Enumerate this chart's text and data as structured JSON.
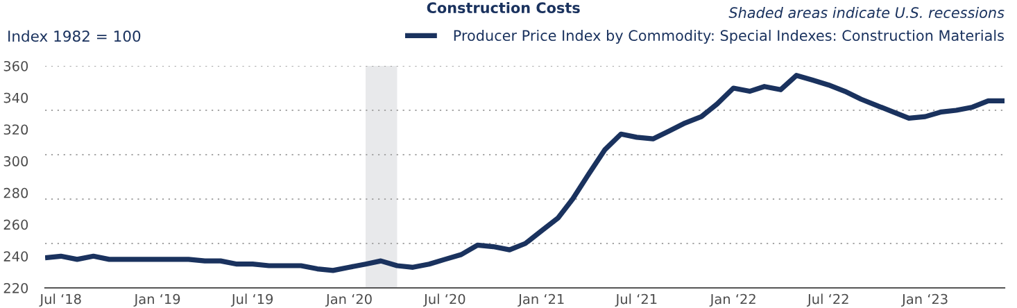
{
  "chart_data": {
    "type": "line",
    "title": "Construction Costs",
    "ylabel": "Index 1982 = 100",
    "annotations": [
      "Shaded areas indicate U.S. recessions"
    ],
    "x": [
      "2018-06",
      "2018-07",
      "2018-08",
      "2018-09",
      "2018-10",
      "2018-11",
      "2018-12",
      "2019-01",
      "2019-02",
      "2019-03",
      "2019-04",
      "2019-05",
      "2019-06",
      "2019-07",
      "2019-08",
      "2019-09",
      "2019-10",
      "2019-11",
      "2019-12",
      "2020-01",
      "2020-02",
      "2020-03",
      "2020-04",
      "2020-05",
      "2020-06",
      "2020-07",
      "2020-08",
      "2020-09",
      "2020-10",
      "2020-11",
      "2020-12",
      "2021-01",
      "2021-02",
      "2021-03",
      "2021-04",
      "2021-05",
      "2021-06",
      "2021-07",
      "2021-08",
      "2021-09",
      "2021-10",
      "2021-11",
      "2021-12",
      "2022-01",
      "2022-02",
      "2022-03",
      "2022-04",
      "2022-05",
      "2022-06",
      "2022-07",
      "2022-08",
      "2022-09",
      "2022-10",
      "2022-11",
      "2022-12",
      "2023-01",
      "2023-02",
      "2023-03",
      "2023-04",
      "2023-05",
      "2023-06"
    ],
    "series": [
      {
        "name": "Producer Price Index by Commodity: Special Indexes: Construction Materials",
        "color": "#1a325e",
        "values": [
          239,
          240,
          238,
          240,
          238,
          238,
          238,
          238,
          238,
          238,
          237,
          237,
          235,
          235,
          234,
          234,
          234,
          232,
          231,
          233,
          235,
          237,
          234,
          233,
          235,
          238,
          241,
          247,
          246,
          244,
          248,
          256,
          264,
          276,
          292,
          307,
          317,
          315,
          314,
          319,
          324,
          328,
          336,
          346,
          344,
          347,
          345,
          354,
          351,
          348,
          344,
          339,
          335,
          331,
          327,
          328,
          331,
          332,
          334,
          338,
          338
        ]
      }
    ],
    "xlim": [
      "2018-06",
      "2023-06"
    ],
    "xticks": [
      {
        "value": "2018-07",
        "label": "Jul ‘18"
      },
      {
        "value": "2019-01",
        "label": "Jan ‘19"
      },
      {
        "value": "2019-07",
        "label": "Jul ‘19"
      },
      {
        "value": "2020-01",
        "label": "Jan ‘20"
      },
      {
        "value": "2020-07",
        "label": "Jul ‘20"
      },
      {
        "value": "2021-01",
        "label": "Jan ‘21"
      },
      {
        "value": "2021-07",
        "label": "Jul ‘21"
      },
      {
        "value": "2022-01",
        "label": "Jan ‘22"
      },
      {
        "value": "2022-07",
        "label": "Jul ‘22"
      },
      {
        "value": "2023-01",
        "label": "Jan ‘23"
      }
    ],
    "ylim": [
      220,
      360
    ],
    "yticks": [
      220,
      240,
      260,
      280,
      300,
      320,
      340,
      360
    ],
    "ref_lines": [
      {
        "axis": "y",
        "value": 248,
        "color": "#a6a6a6",
        "line_style": "dotted"
      },
      {
        "axis": "y",
        "value": 276,
        "color": "#a6a6a6",
        "line_style": "dotted"
      },
      {
        "axis": "y",
        "value": 304,
        "color": "#a6a6a6",
        "line_style": "dotted"
      },
      {
        "axis": "y",
        "value": 332,
        "color": "#a6a6a6",
        "line_style": "dotted"
      },
      {
        "axis": "y",
        "value": 360,
        "color": "#a6a6a6",
        "line_style": "dotted"
      }
    ],
    "bands": [
      {
        "axis": "x",
        "from": "2020-02",
        "to": "2020-04",
        "color": "#e8e9eb"
      }
    ],
    "legend": "top right"
  }
}
